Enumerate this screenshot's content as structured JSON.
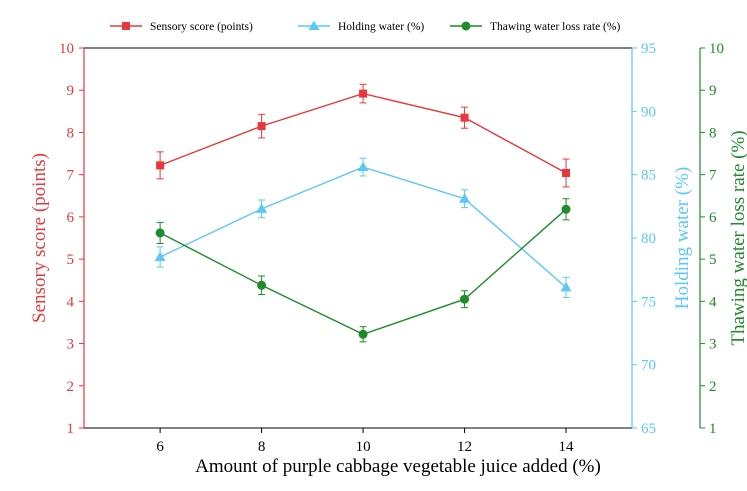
{
  "chart_data": {
    "type": "line",
    "x": [
      6,
      8,
      10,
      12,
      14
    ],
    "xlabel": "Amount of purple cabbage vegetable juice added (%)",
    "xlim": [
      4.5,
      15.3
    ],
    "xticks": [
      "6",
      "8",
      "10",
      "12",
      "14"
    ],
    "legend_position": "top",
    "grid": false,
    "axes": [
      {
        "id": "left",
        "label": "Sensory score (points)",
        "ylim": [
          1,
          10
        ],
        "ticks": [
          "1",
          "2",
          "3",
          "4",
          "5",
          "6",
          "7",
          "8",
          "9",
          "10"
        ],
        "color": "#e8383d"
      },
      {
        "id": "right1",
        "label": "Holding water (%)",
        "ylim": [
          65,
          95
        ],
        "ticks": [
          "65",
          "70",
          "75",
          "80",
          "85",
          "90",
          "95"
        ],
        "color": "#5bc8f5"
      },
      {
        "id": "right2",
        "label": "Thawing water loss rate (%)",
        "ylim": [
          1,
          10
        ],
        "ticks": [
          "1",
          "2",
          "3",
          "4",
          "5",
          "6",
          "7",
          "8",
          "9",
          "10"
        ],
        "color": "#1e8c2a"
      }
    ],
    "series": [
      {
        "name": "Sensory score (points)",
        "axis": "left",
        "marker": "square",
        "color": "#e8383d",
        "values": [
          7.22,
          8.15,
          8.92,
          8.35,
          7.04
        ],
        "errors": [
          0.32,
          0.28,
          0.22,
          0.25,
          0.33
        ]
      },
      {
        "name": "Holding water (%)",
        "axis": "right1",
        "marker": "triangle",
        "color": "#5bc8f5",
        "values": [
          78.5,
          82.3,
          85.6,
          83.1,
          76.1
        ],
        "errors": [
          0.8,
          0.7,
          0.7,
          0.7,
          0.8
        ]
      },
      {
        "name": "Thawing water loss rate (%)",
        "axis": "right2",
        "marker": "circle",
        "color": "#1e8c2a",
        "values": [
          5.62,
          4.38,
          3.22,
          4.05,
          6.18
        ],
        "errors": [
          0.25,
          0.22,
          0.18,
          0.2,
          0.25
        ]
      }
    ]
  }
}
